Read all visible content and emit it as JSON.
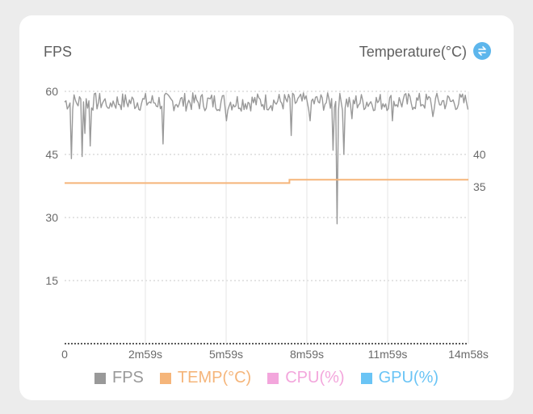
{
  "header": {
    "left_title": "FPS",
    "right_title": "Temperature(°C)",
    "swap_icon": "swap-vertical-icon"
  },
  "chart_data": {
    "type": "line",
    "x_ticks": [
      "0",
      "2m59s",
      "5m59s",
      "8m59s",
      "11m59s",
      "14m58s"
    ],
    "x_range_seconds": [
      0,
      898
    ],
    "y_left": {
      "label": "FPS",
      "ticks": [
        15,
        30,
        45,
        60
      ],
      "range": [
        0,
        60
      ]
    },
    "y_right": {
      "label": "Temperature(°C)",
      "ticks": [
        35,
        40
      ]
    },
    "grid": "dotted horizontal and vertical",
    "series": [
      {
        "name": "FPS",
        "color": "#999999",
        "axis": "left",
        "base": 57.5,
        "spread": 2.2,
        "dips": [
          [
            14,
            44
          ],
          [
            38,
            44.5
          ],
          [
            44,
            50
          ],
          [
            56,
            47
          ],
          [
            100,
            56
          ],
          [
            220,
            47.5
          ],
          [
            360,
            53
          ],
          [
            505,
            49.5
          ],
          [
            545,
            53
          ],
          [
            598,
            46
          ],
          [
            605,
            28.5
          ],
          [
            620,
            45
          ],
          [
            640,
            53.5
          ],
          [
            730,
            53
          ],
          [
            820,
            54
          ]
        ]
      },
      {
        "name": "TEMP(°C)",
        "color": "#f5b57a",
        "axis": "left",
        "segments": [
          [
            0,
            500,
            38.2
          ],
          [
            500,
            898,
            39.0
          ]
        ]
      },
      {
        "name": "CPU(%)",
        "color": "#f3a6dc",
        "values": []
      },
      {
        "name": "GPU(%)",
        "color": "#6ac4f5",
        "values": []
      }
    ]
  },
  "legend": [
    {
      "label": "FPS",
      "color": "#999999"
    },
    {
      "label": "TEMP(°C)",
      "color": "#f5b57a"
    },
    {
      "label": "CPU(%)",
      "color": "#f3a6dc"
    },
    {
      "label": "GPU(%)",
      "color": "#6ac4f5"
    }
  ]
}
